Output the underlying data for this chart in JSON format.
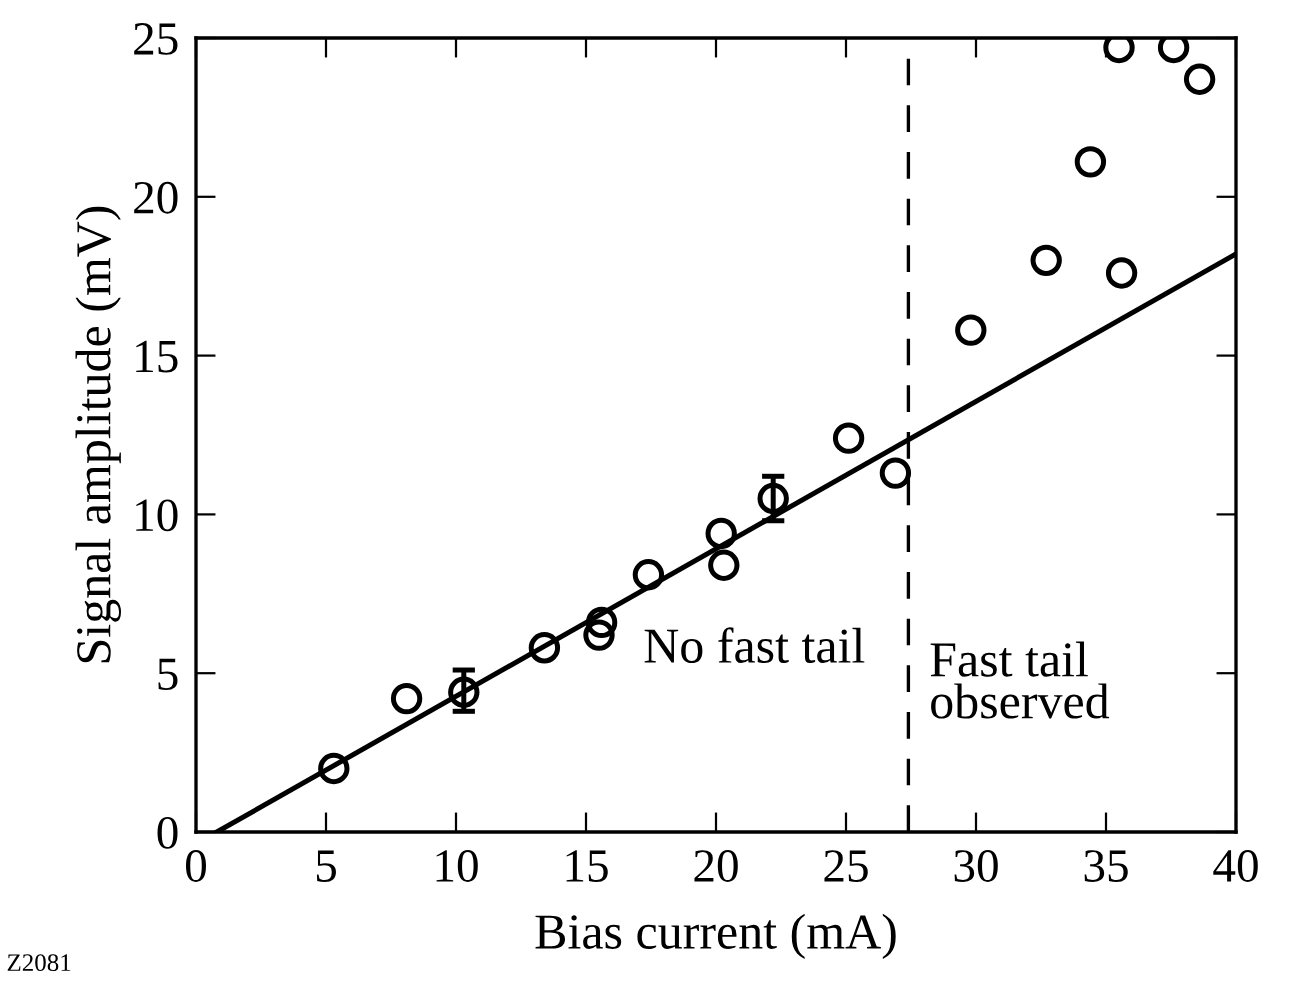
{
  "chart_data": {
    "type": "scatter",
    "xlabel": "Bias current (mA)",
    "ylabel": "Signal amplitude (mV)",
    "xlim": [
      0,
      40
    ],
    "ylim": [
      0,
      25
    ],
    "xticks": [
      0,
      5,
      10,
      15,
      20,
      25,
      30,
      35,
      40
    ],
    "yticks": [
      0,
      5,
      10,
      15,
      20,
      25
    ],
    "grid": false,
    "series": [
      {
        "marker": "circle",
        "color": "#000000",
        "x": [
          5.3,
          8.1,
          10.3,
          13.4,
          15.5,
          15.6,
          17.4,
          20.2,
          20.3,
          22.2,
          25.1,
          26.9,
          29.8,
          32.7,
          34.4,
          35.6,
          35.5,
          37.6,
          38.6
        ],
        "values": [
          2.0,
          4.2,
          4.4,
          5.8,
          6.2,
          6.6,
          8.1,
          9.4,
          8.4,
          10.5,
          12.4,
          11.3,
          15.8,
          18.0,
          21.1,
          17.6,
          24.7,
          24.7,
          23.7
        ],
        "errors": [
          null,
          null,
          [
            3.8,
            5.1
          ],
          null,
          null,
          null,
          null,
          null,
          null,
          [
            9.8,
            11.2
          ],
          null,
          null,
          null,
          null,
          null,
          null,
          null,
          null,
          null
        ]
      },
      {
        "type": "line",
        "marker": "none",
        "color": "#000000",
        "x": [
          0.8,
          40
        ],
        "values": [
          0,
          18.2
        ]
      }
    ],
    "ref_lines": [
      {
        "axis": "x",
        "value": 27.4,
        "line_style": "dashed",
        "color": "#000000"
      }
    ],
    "annotations": [
      "No fast tail",
      "Fast tail\nobserved",
      "Z2081"
    ]
  }
}
